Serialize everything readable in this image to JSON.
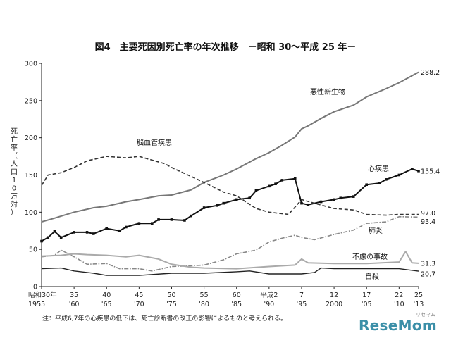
{
  "chart_data": {
    "type": "line",
    "title": "図4　主要死因別死亡率の年次推移　－昭和 30～平成 25 年－",
    "ylabel": "死亡率（人口10万対）",
    "ylim": [
      0,
      300
    ],
    "yticks": [
      "0",
      "50",
      "100",
      "150",
      "200",
      "250",
      "300"
    ],
    "xlim": [
      1955,
      2013
    ],
    "xticks": [
      {
        "year": 1955,
        "top": "昭和30年",
        "bottom": "1955"
      },
      {
        "year": 1960,
        "top": "35",
        "bottom": "'60"
      },
      {
        "year": 1965,
        "top": "40",
        "bottom": "'65"
      },
      {
        "year": 1970,
        "top": "45",
        "bottom": "'70"
      },
      {
        "year": 1975,
        "top": "50",
        "bottom": "'75"
      },
      {
        "year": 1980,
        "top": "55",
        "bottom": "'80"
      },
      {
        "year": 1985,
        "top": "60",
        "bottom": "'85"
      },
      {
        "year": 1990,
        "top": "平成2",
        "bottom": "'90"
      },
      {
        "year": 1995,
        "top": "7",
        "bottom": "'95"
      },
      {
        "year": 2000,
        "top": "12",
        "bottom": "2000"
      },
      {
        "year": 2005,
        "top": "17",
        "bottom": "'05"
      },
      {
        "year": 2010,
        "top": "22",
        "bottom": "'10"
      },
      {
        "year": 2013,
        "top": "25",
        "bottom": "'13"
      }
    ],
    "grid": false,
    "series": [
      {
        "name": "悪性新生物",
        "color": "#777777",
        "style": "solid",
        "width": 2,
        "end_label": "288.2",
        "x": [
          1955,
          1957,
          1960,
          1963,
          1965,
          1968,
          1970,
          1973,
          1975,
          1978,
          1980,
          1983,
          1985,
          1988,
          1990,
          1992,
          1994,
          1995,
          1996,
          1998,
          2000,
          2003,
          2005,
          2008,
          2010,
          2013
        ],
        "y": [
          87,
          92,
          100,
          106,
          108,
          114,
          117,
          122,
          123,
          130,
          140,
          150,
          158,
          172,
          180,
          190,
          201,
          212,
          216,
          226,
          235,
          244,
          255,
          266,
          274,
          288.2
        ]
      },
      {
        "name": "心疾患",
        "color": "#111111",
        "style": "marker",
        "width": 2,
        "end_label": "155.4",
        "x": [
          1955,
          1956,
          1957,
          1958,
          1960,
          1962,
          1963,
          1965,
          1967,
          1968,
          1970,
          1972,
          1973,
          1975,
          1977,
          1978,
          1980,
          1982,
          1983,
          1985,
          1987,
          1988,
          1990,
          1991,
          1992,
          1994,
          1995,
          1996,
          1998,
          2000,
          2001,
          2003,
          2005,
          2007,
          2008,
          2010,
          2012,
          2013
        ],
        "y": [
          61,
          66,
          74,
          66,
          73,
          73,
          71,
          78,
          75,
          80,
          85,
          85,
          90,
          90,
          89,
          95,
          106,
          109,
          112,
          117,
          119,
          129,
          135,
          138,
          143,
          145,
          112,
          110,
          114,
          117,
          119,
          121,
          137,
          139,
          144,
          150,
          158,
          155.4
        ]
      },
      {
        "name": "脳血管疾患",
        "color": "#333333",
        "style": "dashed",
        "width": 1.6,
        "end_label": "97.0",
        "x": [
          1955,
          1956,
          1958,
          1960,
          1962,
          1965,
          1968,
          1970,
          1972,
          1974,
          1975,
          1978,
          1980,
          1983,
          1985,
          1988,
          1990,
          1993,
          1995,
          1997,
          2000,
          2003,
          2005,
          2008,
          2010,
          2013
        ],
        "y": [
          136,
          150,
          153,
          160,
          169,
          175,
          173,
          175,
          170,
          165,
          160,
          148,
          140,
          127,
          122,
          105,
          100,
          97,
          117,
          112,
          105,
          103,
          97,
          96,
          97,
          97
        ]
      },
      {
        "name": "肺炎",
        "color": "#888888",
        "style": "dashdot",
        "width": 1.6,
        "end_label": "93.4",
        "x": [
          1955,
          1957,
          1958,
          1960,
          1962,
          1965,
          1967,
          1970,
          1972,
          1975,
          1978,
          1980,
          1983,
          1985,
          1988,
          1990,
          1992,
          1994,
          1995,
          1997,
          2000,
          2003,
          2005,
          2008,
          2010,
          2013
        ],
        "y": [
          40,
          42,
          49,
          40,
          30,
          31,
          24,
          24,
          21,
          27,
          28,
          29,
          36,
          44,
          49,
          60,
          65,
          69,
          66,
          63,
          70,
          76,
          85,
          87,
          94,
          93.4
        ]
      },
      {
        "name": "不慮の事故",
        "color": "#aaaaaa",
        "style": "solid",
        "width": 2,
        "end_label": "31.3",
        "x": [
          1955,
          1958,
          1960,
          1962,
          1965,
          1968,
          1970,
          1973,
          1975,
          1978,
          1980,
          1985,
          1990,
          1994,
          1995,
          1996,
          2000,
          2005,
          2010,
          2011,
          2012,
          2013
        ],
        "y": [
          41,
          42,
          44,
          43,
          42,
          40,
          42,
          37,
          30,
          26,
          25,
          24,
          27,
          29,
          37,
          32,
          31,
          31,
          33,
          47,
          32,
          31.3
        ]
      },
      {
        "name": "自殺",
        "color": "#222222",
        "style": "solid",
        "width": 1.4,
        "end_label": "20.7",
        "x": [
          1955,
          1958,
          1960,
          1963,
          1965,
          1970,
          1975,
          1980,
          1985,
          1987,
          1990,
          1995,
          1997,
          1998,
          2000,
          2005,
          2010,
          2013
        ],
        "y": [
          24,
          25,
          21,
          18,
          15,
          15,
          18,
          18,
          20,
          21,
          17,
          17,
          19,
          25,
          24,
          24,
          24,
          20.7
        ]
      }
    ],
    "note": "注：平成6,7年の心疾患の低下は、死亡診断書の改正の影響によるものと考えられる。"
  },
  "brand": {
    "logo_text": "ReseMom",
    "logo_sub": "リセマム",
    "color": "#3b8fa8"
  }
}
